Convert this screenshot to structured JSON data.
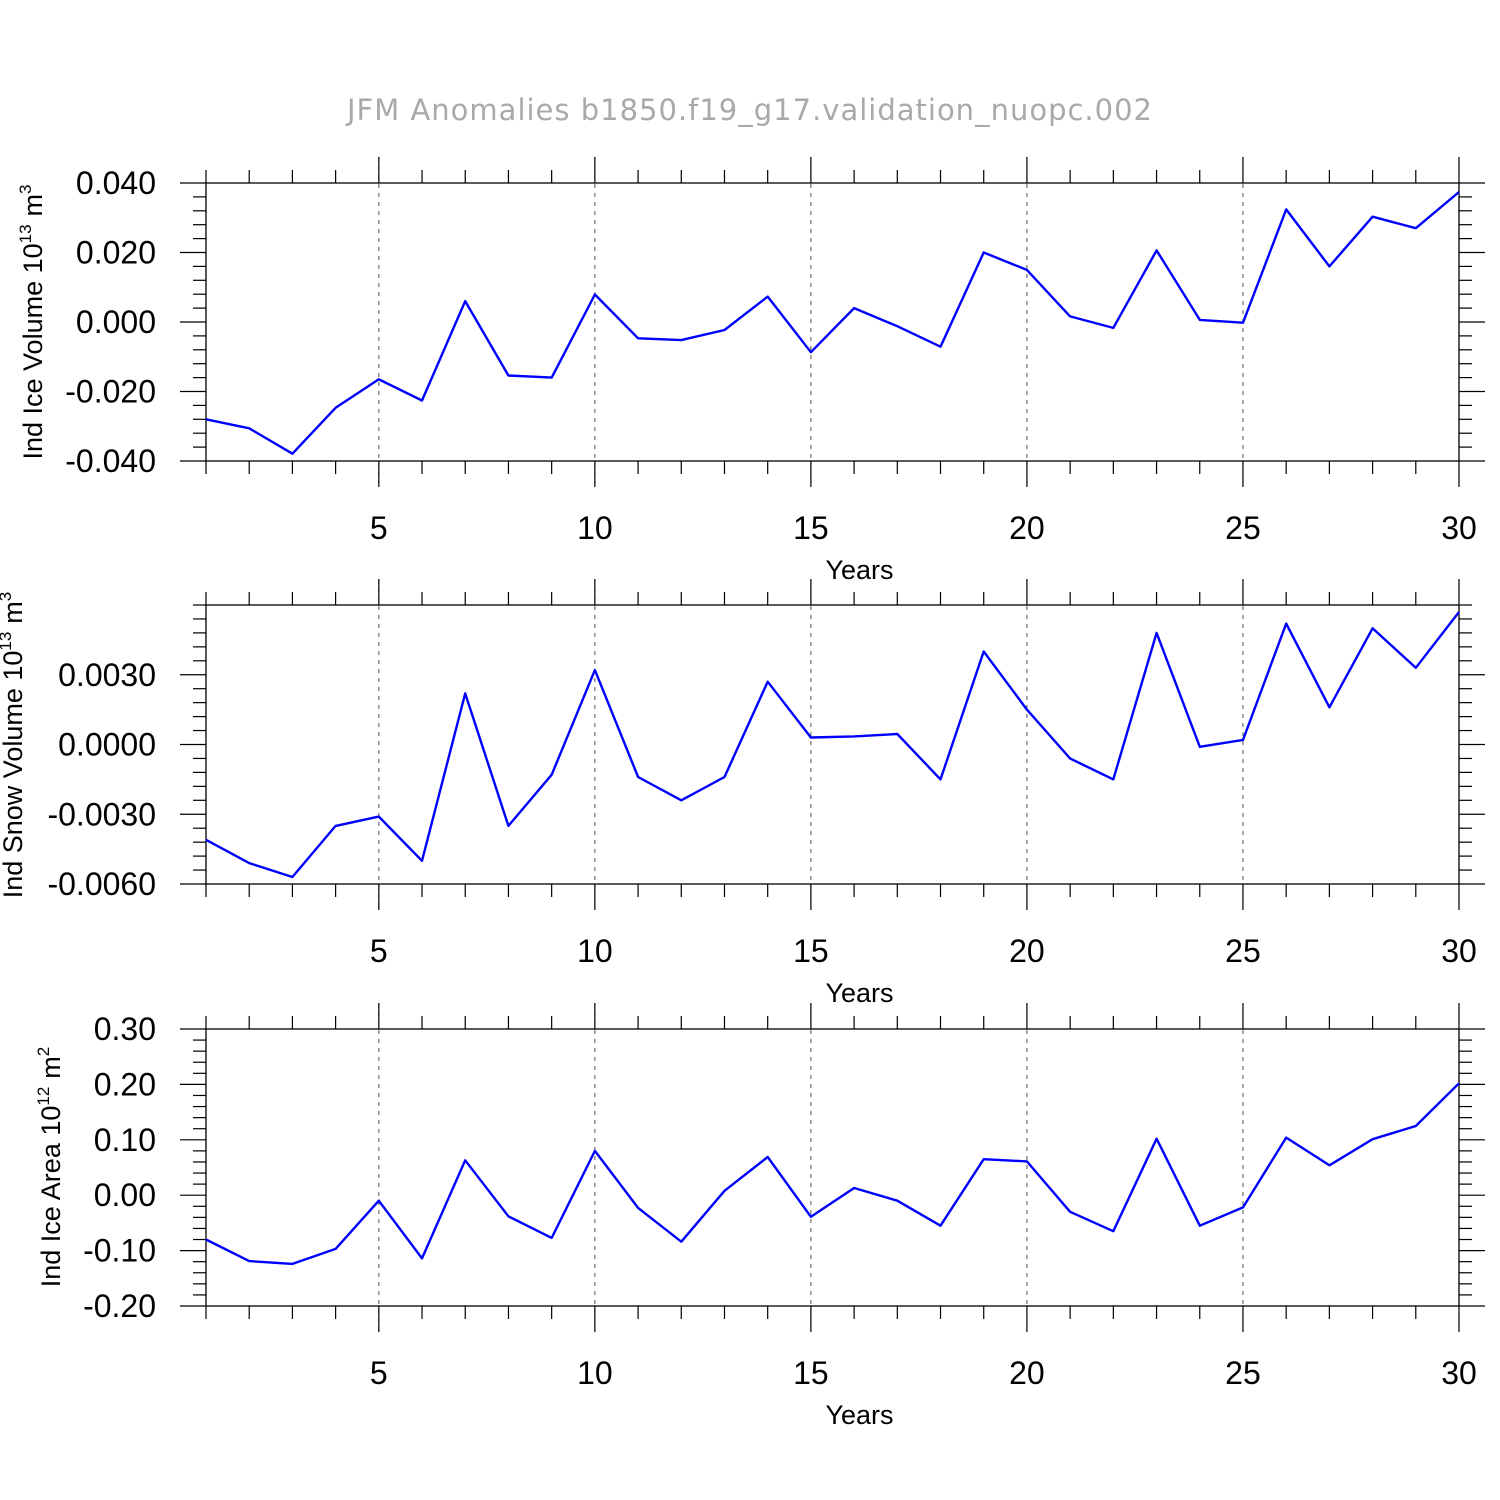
{
  "title": "JFM Anomalies b1850.f19_g17.validation_nuopc.002",
  "colors": {
    "line": "#0000ff",
    "title": "#a9a9a9",
    "grid": "#555555"
  },
  "chart_data": [
    {
      "type": "line",
      "ylabel_main": "Ind Ice Volume 10",
      "ylabel_exp": "13",
      "ylabel_unit": "m",
      "ylabel_unit_exp": "3",
      "xlabel": "Years",
      "xlim": [
        1,
        30
      ],
      "ylim": [
        -0.04,
        0.04
      ],
      "x_ticks": [
        5,
        10,
        15,
        20,
        25,
        30
      ],
      "x_tick_labels": [
        "5",
        "10",
        "15",
        "20",
        "25",
        "30"
      ],
      "y_ticks": [
        -0.04,
        -0.02,
        0.0,
        0.02,
        0.04
      ],
      "y_tick_labels": [
        "-0.040",
        "-0.020",
        "0.000",
        "0.020",
        "0.040"
      ],
      "grid_x": [
        5,
        10,
        15,
        20,
        25
      ],
      "x": [
        1,
        2,
        3,
        4,
        5,
        6,
        7,
        8,
        9,
        10,
        11,
        12,
        13,
        14,
        15,
        16,
        17,
        18,
        19,
        20,
        21,
        22,
        23,
        24,
        25,
        26,
        27,
        28,
        29,
        30
      ],
      "values": [
        -0.028,
        -0.0306,
        -0.0379,
        -0.0247,
        -0.0165,
        -0.0226,
        0.006,
        -0.0154,
        -0.016,
        0.0079,
        -0.0047,
        -0.0052,
        -0.0023,
        0.0073,
        -0.0087,
        0.004,
        -0.0012,
        -0.0071,
        0.02,
        0.015,
        0.0016,
        -0.0017,
        0.0206,
        0.0006,
        -0.0002,
        0.0324,
        0.016,
        0.0303,
        0.027,
        0.0374
      ]
    },
    {
      "type": "line",
      "ylabel_main": "Ind Snow Volume 10",
      "ylabel_exp": "13",
      "ylabel_unit": "m",
      "ylabel_unit_exp": "3",
      "xlabel": "Years",
      "xlim": [
        1,
        30
      ],
      "ylim": [
        -0.006,
        0.006
      ],
      "x_ticks": [
        5,
        10,
        15,
        20,
        25,
        30
      ],
      "x_tick_labels": [
        "5",
        "10",
        "15",
        "20",
        "25",
        "30"
      ],
      "y_ticks": [
        -0.006,
        -0.003,
        0.0,
        0.003
      ],
      "y_tick_labels": [
        "-0.0060",
        "-0.0030",
        "0.0000",
        "0.0030"
      ],
      "grid_x": [
        5,
        10,
        15,
        20,
        25
      ],
      "x": [
        1,
        2,
        3,
        4,
        5,
        6,
        7,
        8,
        9,
        10,
        11,
        12,
        13,
        14,
        15,
        16,
        17,
        18,
        19,
        20,
        21,
        22,
        23,
        24,
        25,
        26,
        27,
        28,
        29,
        30
      ],
      "values": [
        -0.0041,
        -0.0051,
        -0.0057,
        -0.0035,
        -0.0031,
        -0.005,
        0.0022,
        -0.0035,
        -0.0013,
        0.0032,
        -0.0014,
        -0.0024,
        -0.0014,
        0.0027,
        0.0003,
        0.00035,
        0.00045,
        -0.0015,
        0.004,
        0.0015,
        -0.0006,
        -0.0015,
        0.0048,
        -0.0001,
        0.0002,
        0.0052,
        0.0016,
        0.005,
        0.0033,
        0.0057
      ]
    },
    {
      "type": "line",
      "ylabel_main": "Ind Ice Area 10",
      "ylabel_exp": "12",
      "ylabel_unit": "m",
      "ylabel_unit_exp": "2",
      "xlabel": "Years",
      "xlim": [
        1,
        30
      ],
      "ylim": [
        -0.2,
        0.3
      ],
      "x_ticks": [
        5,
        10,
        15,
        20,
        25,
        30
      ],
      "x_tick_labels": [
        "5",
        "10",
        "15",
        "20",
        "25",
        "30"
      ],
      "y_ticks": [
        -0.2,
        -0.1,
        0.0,
        0.1,
        0.2,
        0.3
      ],
      "y_tick_labels": [
        "-0.20",
        "-0.10",
        "0.00",
        "0.10",
        "0.20",
        "0.30"
      ],
      "grid_x": [
        5,
        10,
        15,
        20,
        25
      ],
      "x": [
        1,
        2,
        3,
        4,
        5,
        6,
        7,
        8,
        9,
        10,
        11,
        12,
        13,
        14,
        15,
        16,
        17,
        18,
        19,
        20,
        21,
        22,
        23,
        24,
        25,
        26,
        27,
        28,
        29,
        30
      ],
      "values": [
        -0.08,
        -0.119,
        -0.124,
        -0.097,
        -0.01,
        -0.114,
        0.063,
        -0.038,
        -0.077,
        0.08,
        -0.023,
        -0.084,
        0.008,
        0.069,
        -0.039,
        0.013,
        -0.01,
        -0.055,
        0.065,
        0.061,
        -0.03,
        -0.065,
        0.102,
        -0.055,
        -0.022,
        0.104,
        0.054,
        0.101,
        0.125,
        0.202
      ]
    }
  ]
}
